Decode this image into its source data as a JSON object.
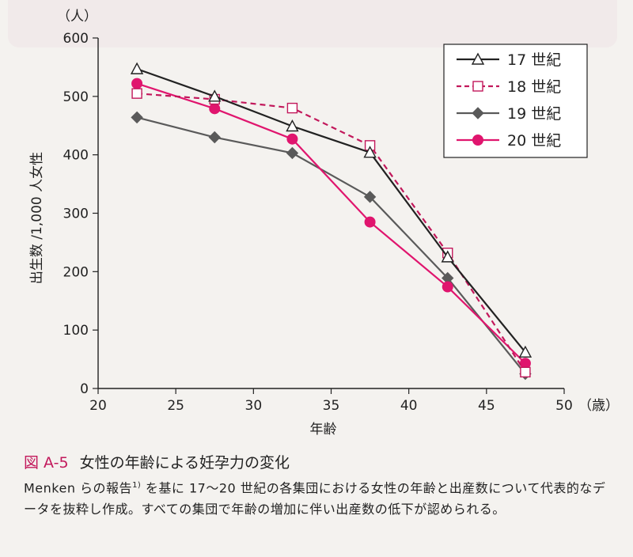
{
  "chart_data": {
    "type": "line",
    "xlabel": "年齢",
    "ylabel": "出生数 /1,000 人女性",
    "y_unit_label": "（人）",
    "x_unit_label": "（歳）",
    "x_ticks": [
      "20",
      "25",
      "30",
      "35",
      "40",
      "45",
      "50"
    ],
    "y_ticks": [
      "0",
      "100",
      "200",
      "300",
      "400",
      "500",
      "600"
    ],
    "xlim": [
      20,
      50
    ],
    "ylim": [
      0,
      600
    ],
    "x": [
      22.5,
      27.5,
      32.5,
      37.5,
      42.5,
      47.5
    ],
    "grid": false,
    "legend_position": "top-right",
    "series": [
      {
        "name": "17 世紀",
        "values": [
          547,
          500,
          449,
          404,
          225,
          62
        ],
        "color": "#222222",
        "marker": "open-triangle",
        "dash": "solid"
      },
      {
        "name": "18 世紀",
        "values": [
          505,
          495,
          480,
          416,
          232,
          28
        ],
        "color": "#c2185b",
        "marker": "open-square",
        "dash": "dashed"
      },
      {
        "name": "19 世紀",
        "values": [
          464,
          430,
          403,
          328,
          189,
          25
        ],
        "color": "#5a5a5a",
        "marker": "diamond",
        "dash": "solid"
      },
      {
        "name": "20 世紀",
        "values": [
          522,
          479,
          427,
          285,
          174,
          43
        ],
        "color": "#e0156e",
        "marker": "circle",
        "dash": "solid"
      }
    ]
  },
  "caption": {
    "figure_label": "図 A-5",
    "title": "女性の年齢による妊孕力の変化",
    "body_pre": "Menken らの報告",
    "body_ref": "1)",
    "body_post": " を基に 17〜20 世紀の各集団における女性の年齢と出産数について代表的なデータを抜粋し作成。すべての集団で年齢の増加に伴い出産数の低下が認められる。"
  }
}
